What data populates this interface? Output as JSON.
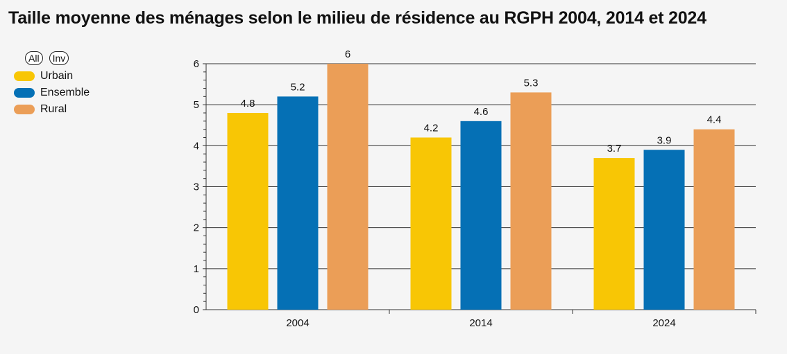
{
  "title": "Taille moyenne des ménages selon le milieu de résidence au RGPH 2004, 2014 et 2024",
  "legend": {
    "all_label": "All",
    "inv_label": "Inv"
  },
  "chart_data": {
    "type": "bar",
    "categories": [
      "2004",
      "2014",
      "2024"
    ],
    "series": [
      {
        "name": "Urbain",
        "color": "#f8c605",
        "values": [
          4.8,
          4.2,
          3.7
        ],
        "labels": [
          "4.8",
          "4.2",
          "3.7"
        ]
      },
      {
        "name": "Ensemble",
        "color": "#0570b5",
        "values": [
          5.2,
          4.6,
          3.9
        ],
        "labels": [
          "5.2",
          "4.6",
          "3.9"
        ]
      },
      {
        "name": "Rural",
        "color": "#eb9e57",
        "values": [
          6,
          5.3,
          4.4
        ],
        "labels": [
          "6",
          "5.3",
          "4.4"
        ]
      }
    ],
    "ylim": [
      0,
      6
    ],
    "yticks": [
      "0",
      "1",
      "2",
      "3",
      "4",
      "5",
      "6"
    ],
    "grid": true,
    "legend_position": "top-left"
  }
}
